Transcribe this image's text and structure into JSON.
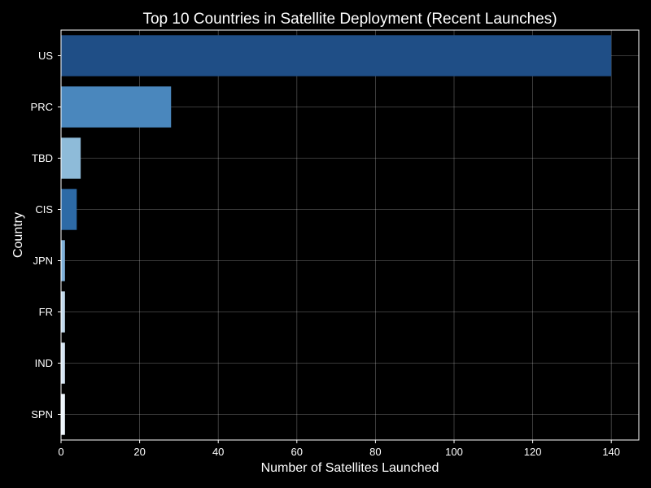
{
  "chart_data": {
    "type": "bar",
    "orientation": "horizontal",
    "title": "Top 10 Countries in Satellite Deployment (Recent Launches)",
    "xlabel": "Number of Satellites Launched",
    "ylabel": "Country",
    "categories": [
      "US",
      "PRC",
      "TBD",
      "CIS",
      "JPN",
      "FR",
      "IND",
      "SPN"
    ],
    "values": [
      140,
      28,
      5,
      4,
      1,
      1,
      1,
      1
    ],
    "colors": [
      "#1f4e86",
      "#4a87bd",
      "#8ebbd9",
      "#2d6aa6",
      "#7fb0d8",
      "#c2d9ec",
      "#d6e5f3",
      "#eef5fc"
    ],
    "xlim": [
      0,
      147
    ],
    "xticks": [
      0,
      20,
      40,
      60,
      80,
      100,
      120,
      140
    ],
    "grid": true,
    "background": "#000000",
    "text_color": "#ffffff"
  }
}
